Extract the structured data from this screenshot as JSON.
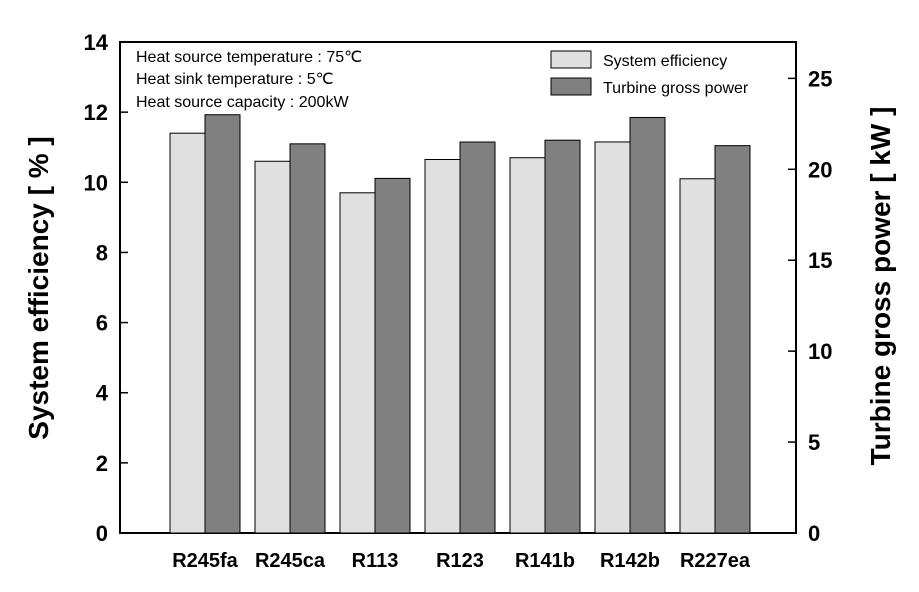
{
  "chart_data": {
    "type": "bar",
    "categories": [
      "R245fa",
      "R245ca",
      "R113",
      "R123",
      "R141b",
      "R142b",
      "R227ea"
    ],
    "series": [
      {
        "name": "System efficiency",
        "axis": "left",
        "color": "#e0e0e0",
        "values": [
          11.4,
          10.6,
          9.7,
          10.65,
          10.7,
          11.15,
          10.1
        ]
      },
      {
        "name": "Turbine gross power",
        "axis": "right",
        "color": "#808080",
        "values": [
          23.0,
          21.4,
          19.5,
          21.5,
          21.6,
          22.85,
          21.3
        ]
      }
    ],
    "ylabel": "System efficiency [ % ]",
    "y2label": "Turbine gross power [ kW ]",
    "ylim": [
      0,
      14
    ],
    "y2lim": [
      0,
      27
    ],
    "yticks": [
      "0",
      "2",
      "4",
      "6",
      "8",
      "10",
      "12",
      "14"
    ],
    "y2ticks": [
      "0",
      "5",
      "10",
      "15",
      "20",
      "25"
    ],
    "annotations": [
      "Heat source temperature : 75℃",
      "Heat sink temperature : 5℃",
      "Heat source capacity : 200kW"
    ],
    "legend_position": "top-right",
    "grid": false
  }
}
